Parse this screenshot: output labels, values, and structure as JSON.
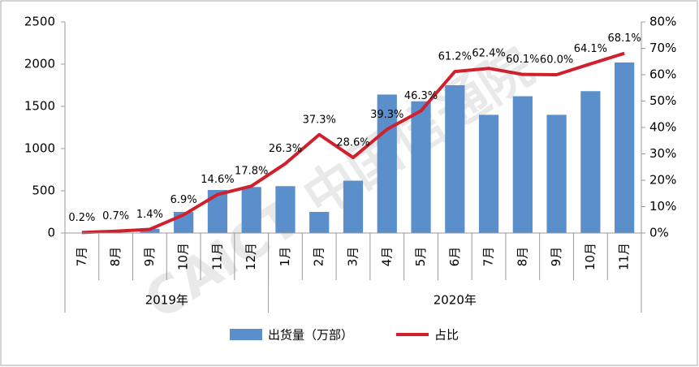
{
  "chart_data": {
    "type": "bar",
    "watermark": "CAICT 中国信通院",
    "categories": [
      "7月",
      "8月",
      "9月",
      "10月",
      "11月",
      "12月",
      "1月",
      "2月",
      "3月",
      "4月",
      "5月",
      "6月",
      "7月",
      "8月",
      "9月",
      "10月",
      "11月"
    ],
    "groups": [
      {
        "label": "2019年",
        "span": 6
      },
      {
        "label": "2020年",
        "span": 11
      }
    ],
    "series": [
      {
        "name": "出货量（万部）",
        "color": "#5b8fcb",
        "values": [
          2,
          5,
          50,
          250,
          510,
          545,
          555,
          250,
          620,
          1640,
          1560,
          1750,
          1400,
          1620,
          1400,
          1680,
          2020
        ]
      },
      {
        "name": "占比",
        "color": "#d0202e",
        "type": "line",
        "axis": "y2",
        "values": [
          0.2,
          0.7,
          1.4,
          6.9,
          14.6,
          17.8,
          26.3,
          37.3,
          28.6,
          39.3,
          46.3,
          61.2,
          62.4,
          60.1,
          60.0,
          64.1,
          68.1
        ],
        "value_labels": [
          "0.2%",
          "0.7%",
          "1.4%",
          "6.9%",
          "14.6%",
          "17.8%",
          "26.3%",
          "37.3%",
          "28.6%",
          "39.3%",
          "46.3%",
          "61.2%",
          "62.4%",
          "60.1%",
          "60.0%",
          "64.1%",
          "68.1%"
        ]
      }
    ],
    "ylim": [
      0,
      2500
    ],
    "yticks": [
      0,
      500,
      1000,
      1500,
      2000,
      2500
    ],
    "y2lim": [
      0,
      80
    ],
    "y2ticks": [
      {
        "value": 0,
        "label": "0%"
      },
      {
        "value": 10,
        "label": "10%"
      },
      {
        "value": 20,
        "label": "20%"
      },
      {
        "value": 30,
        "label": "30%"
      },
      {
        "value": 40,
        "label": "40%"
      },
      {
        "value": 50,
        "label": "50%"
      },
      {
        "value": 60,
        "label": "60%"
      },
      {
        "value": 70,
        "label": "70%"
      },
      {
        "value": 80,
        "label": "80%"
      }
    ],
    "legend": "bottom"
  }
}
